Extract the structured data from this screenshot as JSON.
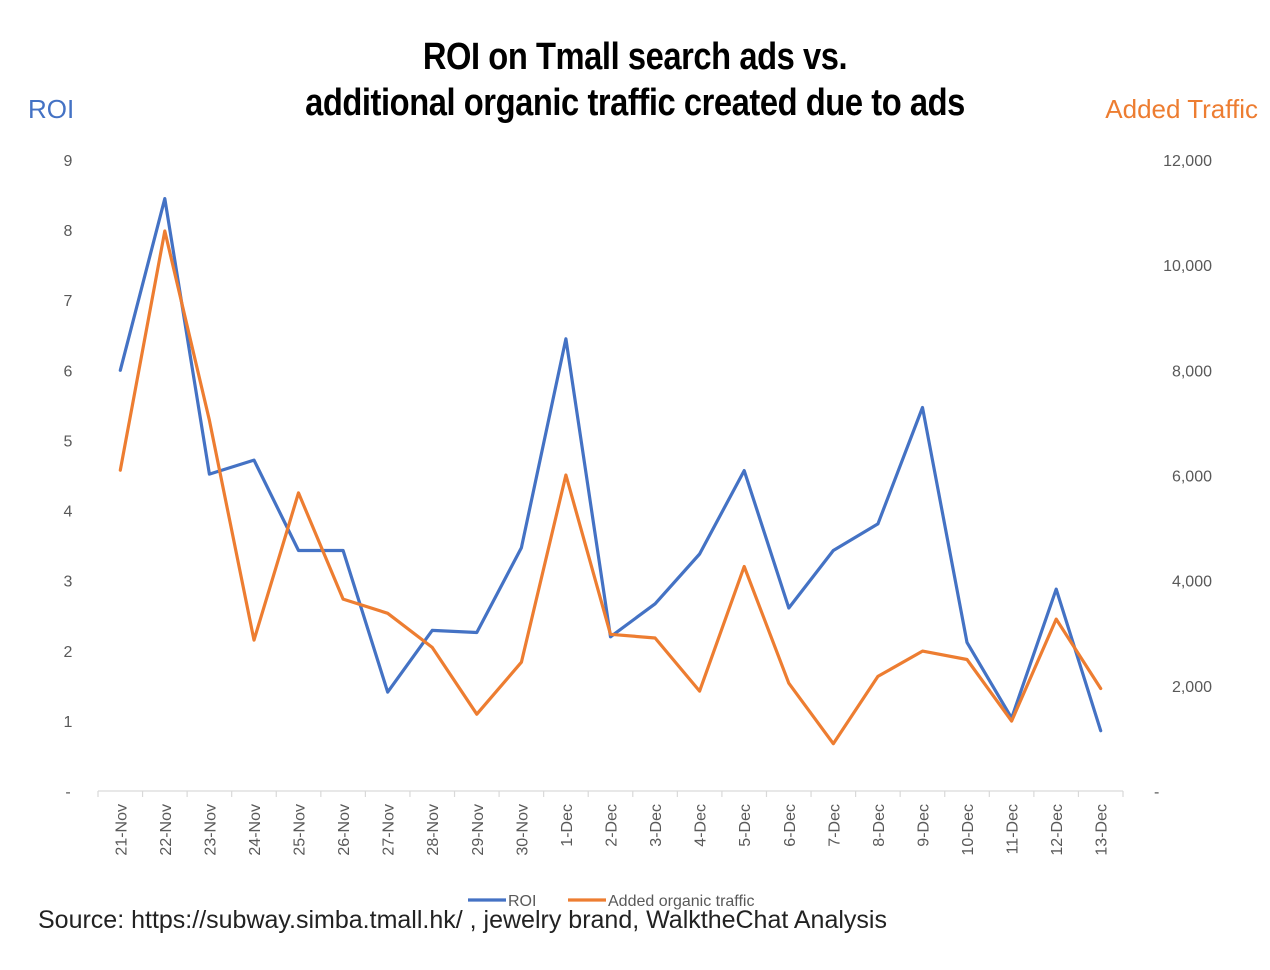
{
  "chart_data": {
    "type": "line",
    "title_line1": "ROI on Tmall search ads vs.",
    "title_line2": "additional organic traffic created due to ads",
    "ylabel_left": "ROI",
    "ylabel_right": "Added Traffic",
    "categories": [
      "21-Nov",
      "22-Nov",
      "23-Nov",
      "24-Nov",
      "25-Nov",
      "26-Nov",
      "27-Nov",
      "28-Nov",
      "29-Nov",
      "30-Nov",
      "1-Dec",
      "2-Dec",
      "3-Dec",
      "4-Dec",
      "5-Dec",
      "6-Dec",
      "7-Dec",
      "8-Dec",
      "9-Dec",
      "10-Dec",
      "11-Dec",
      "12-Dec",
      "13-Dec"
    ],
    "ylim_left": [
      0,
      9
    ],
    "yticks_left": [
      "-",
      "1",
      "2",
      "3",
      "4",
      "5",
      "6",
      "7",
      "8",
      "9"
    ],
    "ylim_right": [
      0,
      12000
    ],
    "yticks_right": [
      "-",
      "2,000",
      "4,000",
      "6,000",
      "8,000",
      "10,000",
      "12,000"
    ],
    "series": [
      {
        "name": "ROI",
        "axis": "left",
        "color": "#4472C4",
        "values": [
          6.0,
          8.45,
          4.52,
          4.72,
          3.43,
          3.43,
          1.41,
          2.29,
          2.26,
          3.47,
          6.45,
          2.2,
          2.67,
          3.38,
          4.57,
          2.61,
          3.43,
          3.81,
          5.47,
          2.12,
          1.04,
          2.88,
          0.86
        ]
      },
      {
        "name": "Added organic traffic",
        "axis": "right",
        "color": "#ED7D31",
        "values": [
          6100,
          10650,
          7050,
          2870,
          5670,
          3650,
          3380,
          2730,
          1460,
          2450,
          6010,
          2980,
          2910,
          1900,
          4270,
          2050,
          900,
          2180,
          2660,
          2500,
          1330,
          3270,
          1950
        ]
      }
    ],
    "legend_position": "bottom",
    "grid": false
  },
  "source_text": "Source: https://subway.simba.tmall.hk/ , jewelry brand, WalktheChat Analysis"
}
